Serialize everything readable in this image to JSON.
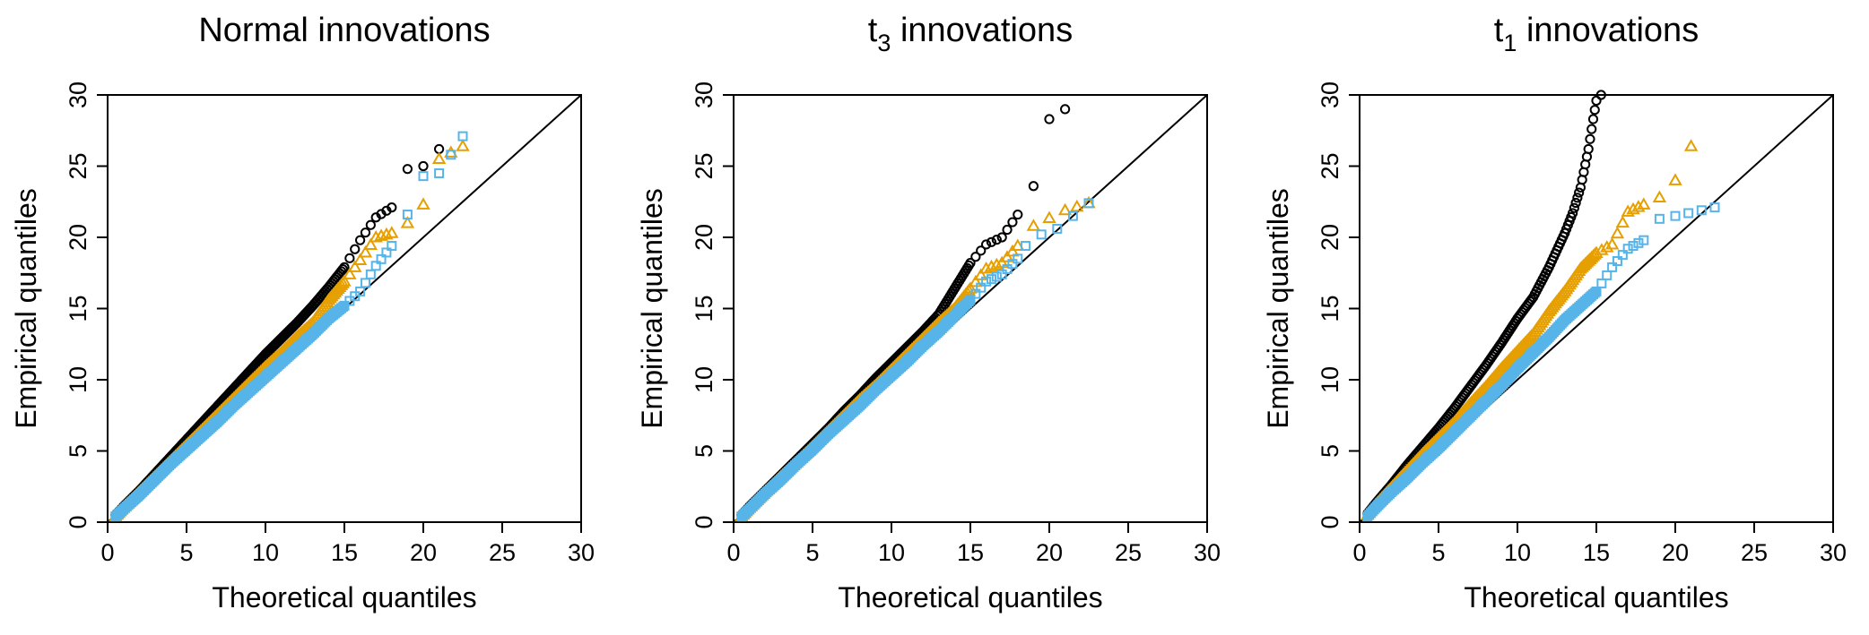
{
  "colors": {
    "black": "#000000",
    "orange": "#E69F00",
    "blue": "#56B4E9"
  },
  "chart_data": [
    {
      "type": "scatter",
      "title": "Normal innovations",
      "xlabel": "Theoretical quantiles",
      "ylabel": "Empirical quantiles",
      "xlim": [
        0,
        30
      ],
      "ylim": [
        0,
        30
      ],
      "xticks": [
        "0",
        "5",
        "10",
        "15",
        "20",
        "25",
        "30"
      ],
      "yticks": [
        "0",
        "5",
        "10",
        "15",
        "20",
        "25",
        "30"
      ],
      "reference_line": "y = x",
      "series": [
        {
          "marker": "circle",
          "color": "#000000",
          "points": [
            [
              0.5,
              0.5
            ],
            [
              1,
              1.1
            ],
            [
              2,
              2.2
            ],
            [
              3,
              3.4
            ],
            [
              4,
              4.6
            ],
            [
              5,
              5.8
            ],
            [
              6,
              7.0
            ],
            [
              7,
              8.2
            ],
            [
              8,
              9.4
            ],
            [
              9,
              10.6
            ],
            [
              10,
              11.8
            ],
            [
              11,
              12.9
            ],
            [
              12,
              14.0
            ],
            [
              13,
              15.2
            ],
            [
              14,
              16.5
            ],
            [
              15,
              17.9
            ],
            [
              16,
              19.8
            ],
            [
              17,
              21.4
            ],
            [
              18,
              22.1
            ],
            [
              19,
              24.8
            ],
            [
              20,
              25.0
            ],
            [
              21,
              26.2
            ]
          ]
        },
        {
          "marker": "triangle",
          "color": "#E69F00",
          "points": [
            [
              0.5,
              0.4
            ],
            [
              1,
              1.0
            ],
            [
              2,
              2.1
            ],
            [
              3,
              3.2
            ],
            [
              4,
              4.3
            ],
            [
              5,
              5.4
            ],
            [
              6,
              6.5
            ],
            [
              7,
              7.6
            ],
            [
              8,
              8.7
            ],
            [
              9,
              9.8
            ],
            [
              10,
              10.9
            ],
            [
              11,
              11.9
            ],
            [
              12,
              13.0
            ],
            [
              13,
              14.0
            ],
            [
              14,
              15.6
            ],
            [
              15,
              16.9
            ],
            [
              16,
              18.4
            ],
            [
              17,
              20.0
            ],
            [
              18,
              20.3
            ],
            [
              19,
              21.0
            ],
            [
              20,
              22.3
            ],
            [
              21,
              25.5
            ],
            [
              22.5,
              26.4
            ]
          ]
        },
        {
          "marker": "square",
          "color": "#56B4E9",
          "points": [
            [
              0.5,
              0.4
            ],
            [
              1,
              0.9
            ],
            [
              2,
              1.9
            ],
            [
              3,
              3.0
            ],
            [
              4,
              4.1
            ],
            [
              5,
              5.1
            ],
            [
              6,
              6.1
            ],
            [
              7,
              7.1
            ],
            [
              8,
              8.2
            ],
            [
              9,
              9.2
            ],
            [
              10,
              10.2
            ],
            [
              11,
              11.2
            ],
            [
              12,
              12.2
            ],
            [
              13,
              13.2
            ],
            [
              14,
              14.3
            ],
            [
              15,
              15.2
            ],
            [
              16,
              16.2
            ],
            [
              17,
              18.0
            ],
            [
              18,
              19.4
            ],
            [
              19,
              21.6
            ],
            [
              20,
              24.3
            ],
            [
              21,
              24.5
            ],
            [
              22.5,
              27.1
            ]
          ]
        }
      ]
    },
    {
      "type": "scatter",
      "title": "t3 innovations",
      "title_main": "t",
      "title_sub": "3",
      "title_rest": " innovations",
      "xlabel": "Theoretical quantiles",
      "ylabel": "Empirical quantiles",
      "xlim": [
        0,
        30
      ],
      "ylim": [
        0,
        30
      ],
      "xticks": [
        "0",
        "5",
        "10",
        "15",
        "20",
        "25",
        "30"
      ],
      "yticks": [
        "0",
        "5",
        "10",
        "15",
        "20",
        "25",
        "30"
      ],
      "reference_line": "y = x",
      "series": [
        {
          "marker": "circle",
          "color": "#000000",
          "points": [
            [
              0.5,
              0.5
            ],
            [
              1,
              1.1
            ],
            [
              2,
              2.2
            ],
            [
              3,
              3.3
            ],
            [
              4,
              4.4
            ],
            [
              5,
              5.5
            ],
            [
              6,
              6.6
            ],
            [
              7,
              7.8
            ],
            [
              8,
              8.9
            ],
            [
              9,
              10.1
            ],
            [
              10,
              11.2
            ],
            [
              11,
              12.3
            ],
            [
              12,
              13.4
            ],
            [
              13,
              14.6
            ],
            [
              14,
              16.4
            ],
            [
              15,
              18.2
            ],
            [
              16,
              19.5
            ],
            [
              17,
              20.0
            ],
            [
              18,
              21.6
            ],
            [
              19,
              23.6
            ],
            [
              20,
              28.3
            ],
            [
              21,
              29.0
            ]
          ]
        },
        {
          "marker": "triangle",
          "color": "#E69F00",
          "points": [
            [
              0.5,
              0.4
            ],
            [
              1,
              1.0
            ],
            [
              2,
              2.1
            ],
            [
              3,
              3.2
            ],
            [
              4,
              4.2
            ],
            [
              5,
              5.3
            ],
            [
              6,
              6.4
            ],
            [
              7,
              7.5
            ],
            [
              8,
              8.6
            ],
            [
              9,
              9.6
            ],
            [
              10,
              10.7
            ],
            [
              11,
              11.8
            ],
            [
              12,
              12.9
            ],
            [
              13,
              14.0
            ],
            [
              14,
              15.0
            ],
            [
              15,
              16.4
            ],
            [
              16,
              17.8
            ],
            [
              17,
              18.2
            ],
            [
              18,
              19.4
            ],
            [
              19,
              20.8
            ],
            [
              21,
              21.9
            ],
            [
              22.5,
              22.4
            ]
          ]
        },
        {
          "marker": "square",
          "color": "#56B4E9",
          "points": [
            [
              0.5,
              0.4
            ],
            [
              1,
              0.9
            ],
            [
              2,
              2.0
            ],
            [
              3,
              3.0
            ],
            [
              4,
              4.1
            ],
            [
              5,
              5.1
            ],
            [
              6,
              6.2
            ],
            [
              7,
              7.2
            ],
            [
              8,
              8.2
            ],
            [
              9,
              9.3
            ],
            [
              10,
              10.3
            ],
            [
              11,
              11.3
            ],
            [
              12,
              12.4
            ],
            [
              13,
              13.4
            ],
            [
              14,
              14.5
            ],
            [
              15,
              15.6
            ],
            [
              16,
              16.9
            ],
            [
              17,
              17.4
            ],
            [
              18,
              18.5
            ],
            [
              18.5,
              19.4
            ],
            [
              19.5,
              20.2
            ],
            [
              20.5,
              20.6
            ],
            [
              22.5,
              22.4
            ]
          ]
        }
      ]
    },
    {
      "type": "scatter",
      "title": "t1 innovations",
      "title_main": "t",
      "title_sub": "1",
      "title_rest": " innovations",
      "xlabel": "Theoretical quantiles",
      "ylabel": "Empirical quantiles",
      "xlim": [
        0,
        30
      ],
      "ylim": [
        0,
        30
      ],
      "xticks": [
        "0",
        "5",
        "10",
        "15",
        "20",
        "25",
        "30"
      ],
      "yticks": [
        "0",
        "5",
        "10",
        "15",
        "20",
        "25",
        "30"
      ],
      "reference_line": "y = x",
      "series": [
        {
          "marker": "circle",
          "color": "#000000",
          "points": [
            [
              0.5,
              0.6
            ],
            [
              1,
              1.3
            ],
            [
              2,
              2.6
            ],
            [
              3,
              4.0
            ],
            [
              4,
              5.3
            ],
            [
              5,
              6.6
            ],
            [
              6,
              8.0
            ],
            [
              7,
              9.5
            ],
            [
              8,
              11.0
            ],
            [
              9,
              12.6
            ],
            [
              10,
              14.3
            ],
            [
              11,
              15.8
            ],
            [
              12,
              17.9
            ],
            [
              13,
              20.3
            ],
            [
              13.5,
              21.7
            ],
            [
              14,
              23.5
            ],
            [
              14.5,
              26.2
            ],
            [
              14.8,
              28.3
            ],
            [
              15,
              29.6
            ],
            [
              15.3,
              30.0
            ]
          ]
        },
        {
          "marker": "triangle",
          "color": "#E69F00",
          "points": [
            [
              0.5,
              0.5
            ],
            [
              1,
              1.2
            ],
            [
              2,
              2.4
            ],
            [
              3,
              3.6
            ],
            [
              4,
              4.8
            ],
            [
              5,
              5.9
            ],
            [
              6,
              7.0
            ],
            [
              7,
              8.3
            ],
            [
              8,
              9.5
            ],
            [
              9,
              10.8
            ],
            [
              10,
              12.0
            ],
            [
              11,
              13.2
            ],
            [
              12,
              14.8
            ],
            [
              13,
              16.2
            ],
            [
              14,
              17.8
            ],
            [
              15,
              18.9
            ],
            [
              16,
              19.5
            ],
            [
              17,
              21.8
            ],
            [
              18,
              22.3
            ],
            [
              19,
              22.8
            ],
            [
              20,
              24.0
            ],
            [
              21,
              26.4
            ]
          ]
        },
        {
          "marker": "square",
          "color": "#56B4E9",
          "points": [
            [
              0.5,
              0.4
            ],
            [
              1,
              1.0
            ],
            [
              2,
              2.1
            ],
            [
              3,
              3.1
            ],
            [
              4,
              4.2
            ],
            [
              5,
              5.2
            ],
            [
              6,
              6.3
            ],
            [
              7,
              7.4
            ],
            [
              8,
              8.5
            ],
            [
              9,
              9.6
            ],
            [
              10,
              10.8
            ],
            [
              11,
              11.9
            ],
            [
              12,
              13.0
            ],
            [
              13,
              14.2
            ],
            [
              14,
              15.2
            ],
            [
              15,
              16.2
            ],
            [
              16,
              17.9
            ],
            [
              17,
              19.2
            ],
            [
              18,
              19.8
            ],
            [
              19,
              21.3
            ],
            [
              20,
              21.5
            ],
            [
              22.5,
              22.1
            ]
          ]
        }
      ]
    }
  ]
}
